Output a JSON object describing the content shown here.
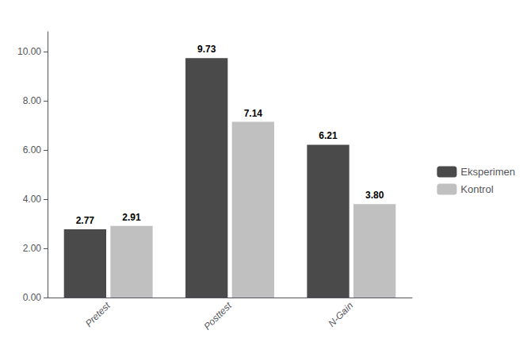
{
  "chart_data": {
    "type": "bar",
    "categories": [
      "Pretest",
      "Posttest",
      "N-Gain"
    ],
    "series": [
      {
        "name": "Eksperimen",
        "color": "#4a4a4a",
        "values": [
          2.77,
          9.73,
          6.21
        ],
        "value_labels": [
          "2.77",
          "9.73",
          "6.21"
        ]
      },
      {
        "name": "Kontrol",
        "color": "#c0c0c0",
        "values": [
          2.91,
          7.14,
          3.8
        ],
        "value_labels": [
          "2.91",
          "7.14",
          "3.80"
        ]
      }
    ],
    "ylim": [
      0,
      10.8
    ],
    "yticks": [
      {
        "value": 0.0,
        "label": "0.00"
      },
      {
        "value": 2.0,
        "label": "2.00"
      },
      {
        "value": 4.0,
        "label": "4.00"
      },
      {
        "value": 6.0,
        "label": "6.00"
      },
      {
        "value": 8.0,
        "label": "8.00"
      },
      {
        "value": 10.0,
        "label": "10.00"
      }
    ],
    "grid": false,
    "legend": "right",
    "data_labels": true
  }
}
